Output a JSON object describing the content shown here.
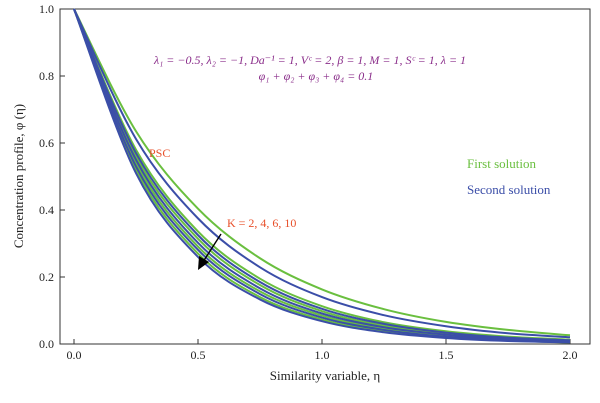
{
  "chart_data": {
    "type": "line",
    "xlabel": "Similarity variable, η",
    "ylabel": "Concentration profile, φ (η)",
    "xlim": [
      0,
      2.0
    ],
    "ylim": [
      0,
      1.0
    ],
    "xticks": [
      "0.0",
      "0.5",
      "1.0",
      "1.5",
      "2.0"
    ],
    "yticks": [
      "0.0",
      "0.2",
      "0.4",
      "0.6",
      "0.8",
      "1.0"
    ],
    "params_line1": "λ₁ = −0.5, λ₂ = −1, Da⁻¹ = 1, Vᶜ = 2, β = 1, M = 1, Sᶜ = 1, λ = 1",
    "params_line2": "φ₁ + φ₂ + φ₃ + φ₄ = 0.1",
    "annotation_psc": "PSC",
    "annotation_k": "K = 2, 4, 6, 10",
    "legend": [
      {
        "label": "First solution",
        "color": "#6abf3f"
      },
      {
        "label": "Second solution",
        "color": "#3b4ea8"
      }
    ],
    "x": [
      0,
      0.25,
      0.5,
      0.75,
      1.0,
      1.25,
      1.5,
      1.75,
      2.0
    ],
    "series": [
      {
        "group": "First solution",
        "color": "#6abf3f",
        "values": [
          1.0,
          0.635,
          0.404,
          0.256,
          0.163,
          0.104,
          0.066,
          0.042,
          0.026
        ]
      },
      {
        "group": "First solution",
        "color": "#6abf3f",
        "values": [
          1.0,
          0.58,
          0.336,
          0.195,
          0.113,
          0.065,
          0.038,
          0.022,
          0.013
        ]
      },
      {
        "group": "First solution",
        "color": "#6abf3f",
        "values": [
          1.0,
          0.56,
          0.314,
          0.176,
          0.098,
          0.055,
          0.031,
          0.017,
          0.01
        ]
      },
      {
        "group": "First solution",
        "color": "#6abf3f",
        "values": [
          1.0,
          0.54,
          0.291,
          0.157,
          0.085,
          0.046,
          0.025,
          0.013,
          0.007
        ]
      },
      {
        "group": "First solution",
        "color": "#6abf3f",
        "values": [
          1.0,
          0.52,
          0.27,
          0.14,
          0.073,
          0.038,
          0.02,
          0.01,
          0.005
        ]
      },
      {
        "group": "Second solution",
        "color": "#3b4ea8",
        "values": [
          1.0,
          0.612,
          0.375,
          0.229,
          0.14,
          0.086,
          0.053,
          0.032,
          0.02
        ]
      },
      {
        "group": "Second solution",
        "color": "#3b4ea8",
        "values": [
          1.0,
          0.57,
          0.325,
          0.185,
          0.105,
          0.06,
          0.034,
          0.019,
          0.011
        ]
      },
      {
        "group": "Second solution",
        "color": "#3b4ea8",
        "values": [
          1.0,
          0.55,
          0.302,
          0.166,
          0.091,
          0.05,
          0.028,
          0.015,
          0.008
        ]
      },
      {
        "group": "Second solution",
        "color": "#3b4ea8",
        "values": [
          1.0,
          0.53,
          0.281,
          0.149,
          0.079,
          0.042,
          0.022,
          0.012,
          0.006
        ]
      },
      {
        "group": "Second solution",
        "color": "#3b4ea8",
        "values": [
          1.0,
          0.51,
          0.26,
          0.133,
          0.068,
          0.035,
          0.018,
          0.009,
          0.005
        ]
      }
    ]
  }
}
